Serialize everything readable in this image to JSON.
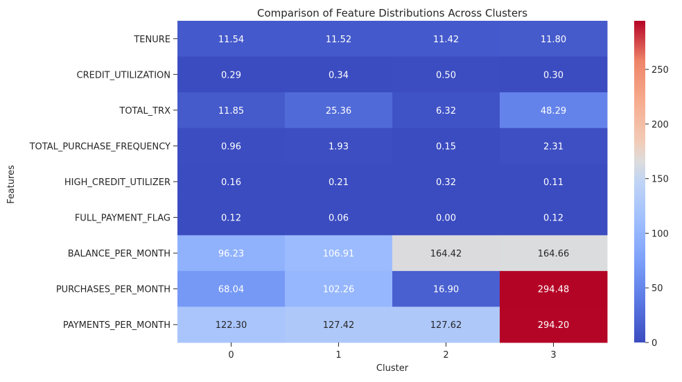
{
  "chart_data": {
    "type": "heatmap",
    "title": "Comparison of Feature Distributions Across Clusters",
    "xlabel": "Cluster",
    "ylabel": "Features",
    "x_categories": [
      "0",
      "1",
      "2",
      "3"
    ],
    "y_categories": [
      "TENURE",
      "CREDIT_UTILIZATION",
      "TOTAL_TRX",
      "TOTAL_PURCHASE_FREQUENCY",
      "HIGH_CREDIT_UTILIZER",
      "FULL_PAYMENT_FLAG",
      "BALANCE_PER_MONTH",
      "PURCHASES_PER_MONTH",
      "PAYMENTS_PER_MONTH"
    ],
    "values": [
      [
        11.54,
        11.52,
        11.42,
        11.8
      ],
      [
        0.29,
        0.34,
        0.5,
        0.3
      ],
      [
        11.85,
        25.36,
        6.32,
        48.29
      ],
      [
        0.96,
        1.93,
        0.15,
        2.31
      ],
      [
        0.16,
        0.21,
        0.32,
        0.11
      ],
      [
        0.12,
        0.06,
        0.0,
        0.12
      ],
      [
        96.23,
        106.91,
        164.42,
        164.66
      ],
      [
        68.04,
        102.26,
        16.9,
        294.48
      ],
      [
        122.3,
        127.42,
        127.62,
        294.2
      ]
    ],
    "value_labels": [
      [
        "11.54",
        "11.52",
        "11.42",
        "11.80"
      ],
      [
        "0.29",
        "0.34",
        "0.50",
        "0.30"
      ],
      [
        "11.85",
        "25.36",
        "6.32",
        "48.29"
      ],
      [
        "0.96",
        "1.93",
        "0.15",
        "2.31"
      ],
      [
        "0.16",
        "0.21",
        "0.32",
        "0.11"
      ],
      [
        "0.12",
        "0.06",
        "0.00",
        "0.12"
      ],
      [
        "96.23",
        "106.91",
        "164.42",
        "164.66"
      ],
      [
        "68.04",
        "102.26",
        "16.90",
        "294.48"
      ],
      [
        "122.30",
        "127.42",
        "127.62",
        "294.20"
      ]
    ],
    "colormap": "coolwarm",
    "colorbar": {
      "min": 0,
      "max": 294.48,
      "ticks": [
        0,
        50,
        100,
        150,
        200,
        250
      ],
      "tick_labels": [
        "0",
        "50",
        "100",
        "150",
        "200",
        "250"
      ]
    }
  }
}
